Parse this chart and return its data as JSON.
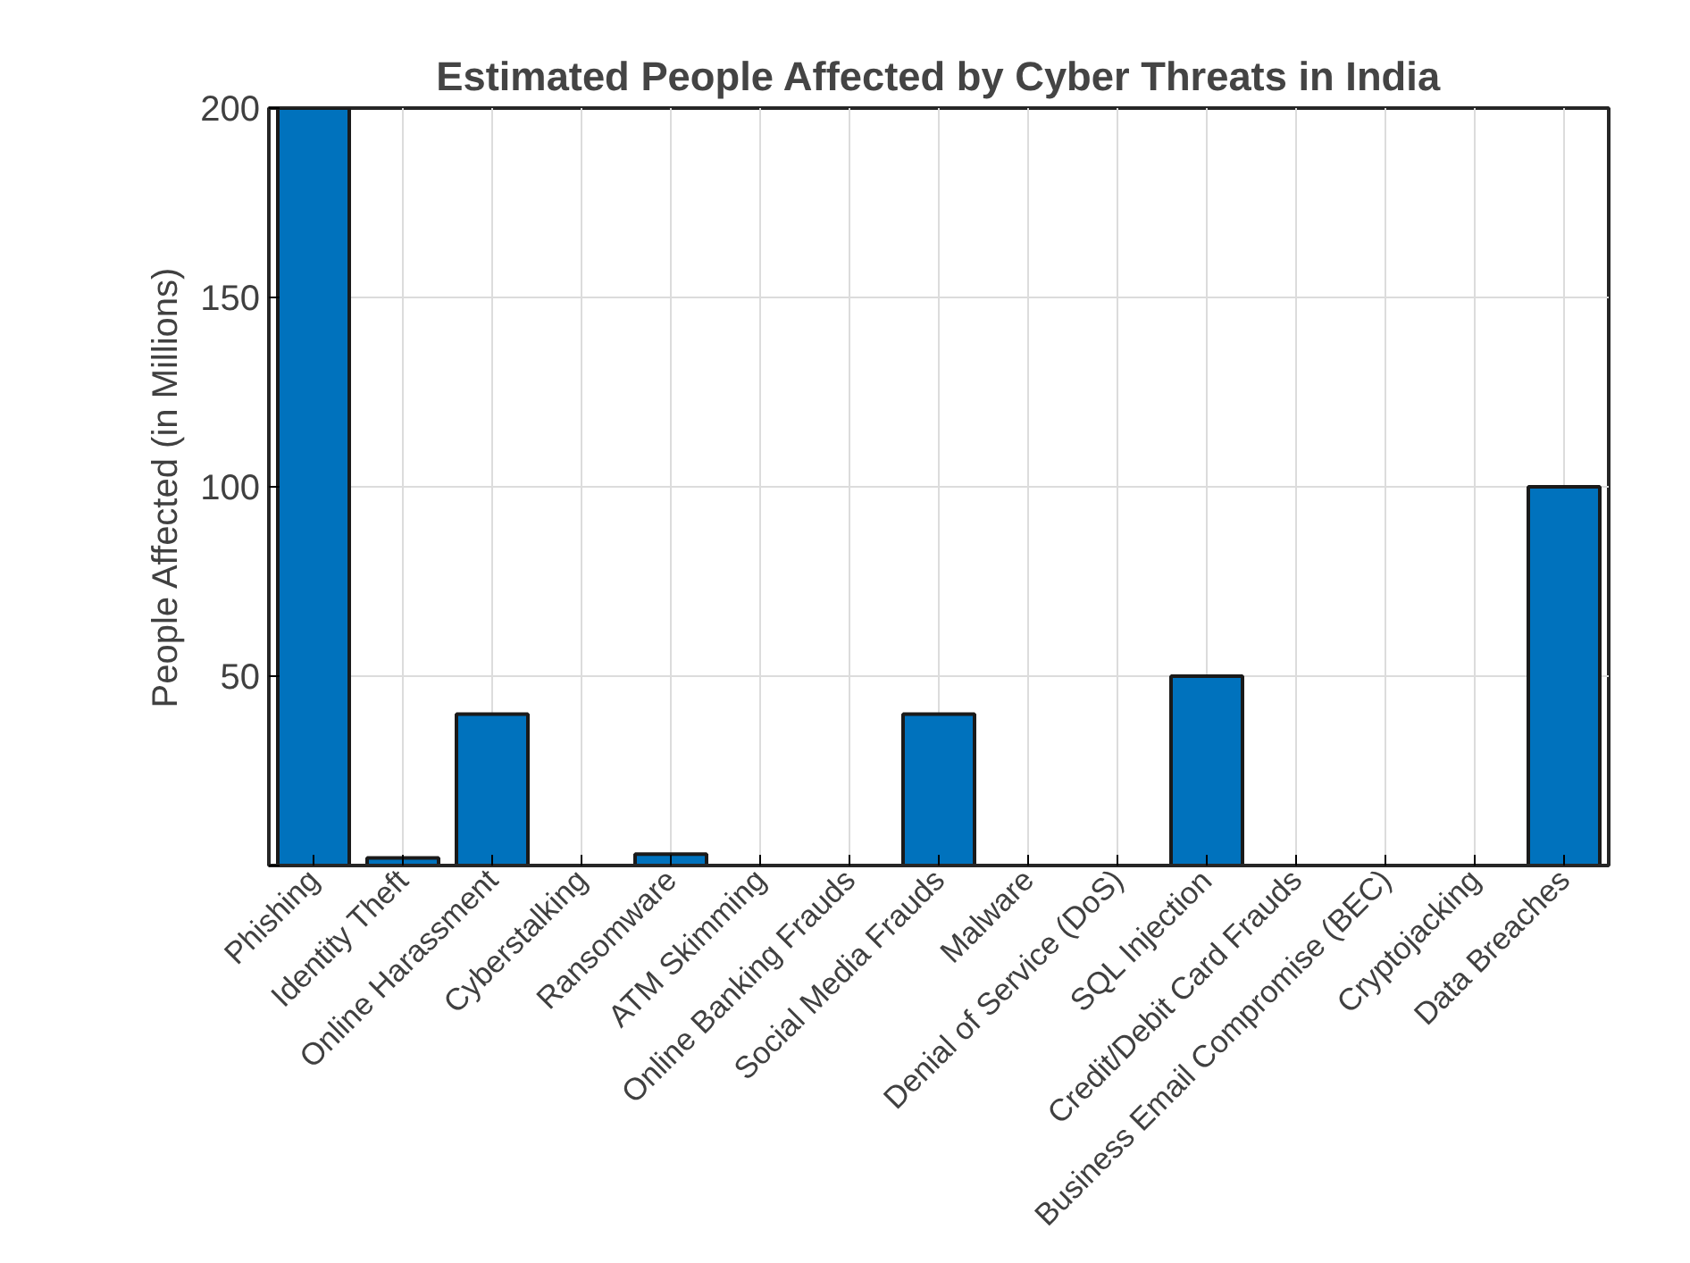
{
  "chart_data": {
    "type": "bar",
    "title": "Estimated People Affected by Cyber Threats in India",
    "ylabel": "People Affected (in Millions)",
    "categories": [
      "Phishing",
      "Identity Theft",
      "Online Harassment",
      "Cyberstalking",
      "Ransomware",
      "ATM Skimming",
      "Online Banking Frauds",
      "Social Media Frauds",
      "Malware",
      "Denial of Service (DoS)",
      "SQL Injection",
      "Credit/Debit Card Frauds",
      "Business Email Compromise (BEC)",
      "Cryptojacking",
      "Data Breaches"
    ],
    "values": [
      200,
      2,
      40,
      0,
      3,
      0,
      0,
      40,
      0,
      0,
      50,
      0,
      0,
      0,
      100
    ],
    "color": "#0072bd",
    "ylim": [
      0,
      200
    ],
    "yticks": [
      {
        "value": 0,
        "label": null
      },
      50,
      100,
      150,
      200
    ],
    "grid": true
  }
}
